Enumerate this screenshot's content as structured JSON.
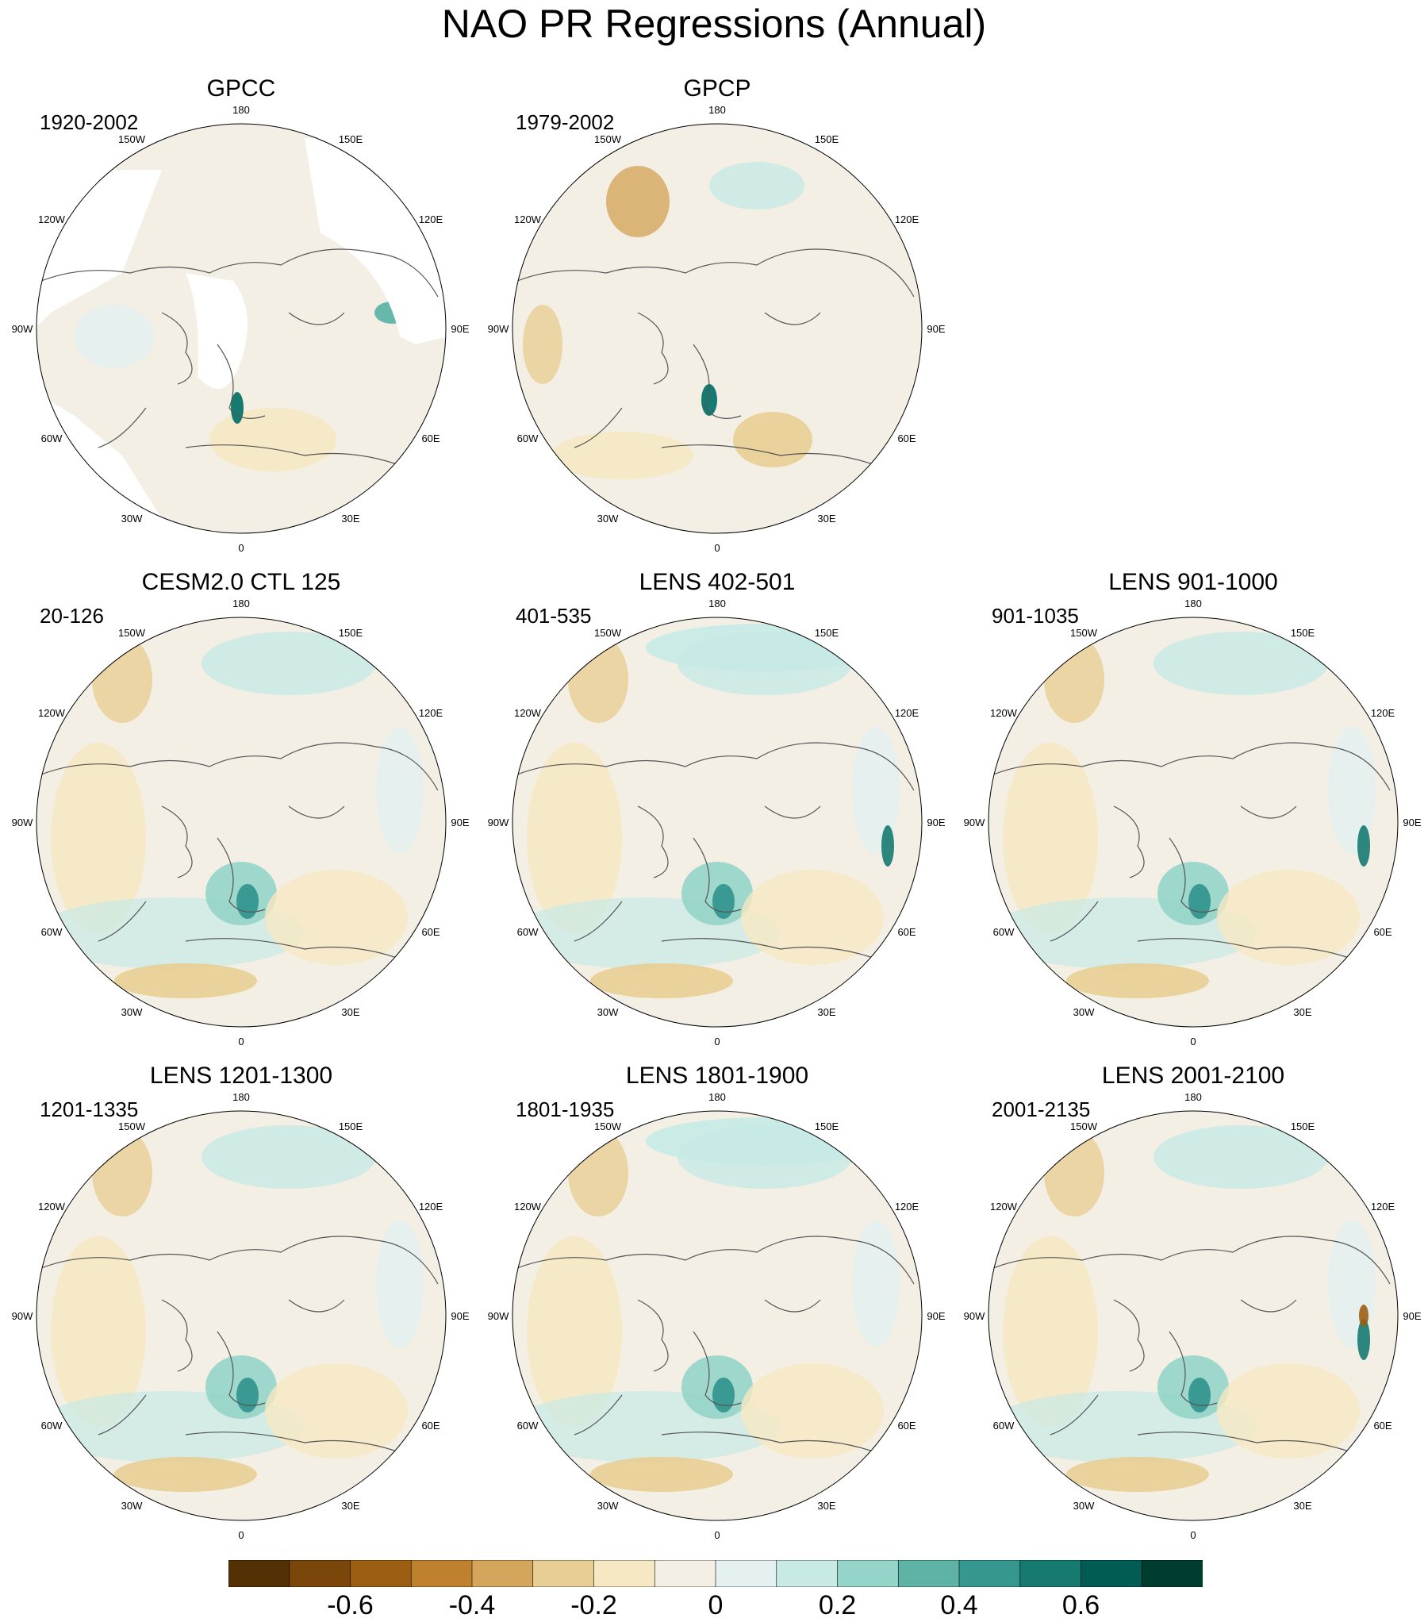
{
  "title": "NAO PR Regressions (Annual)",
  "longitude_labels": [
    "180",
    "150E",
    "120E",
    "90E",
    "60E",
    "30E",
    "0",
    "30W",
    "60W",
    "90W",
    "120W",
    "150W"
  ],
  "panels": [
    {
      "title": "GPCC",
      "period": "1920-2002",
      "dataset": "observed",
      "has_missing_land": true
    },
    {
      "title": "GPCP",
      "period": "1979-2002",
      "dataset": "observed",
      "has_missing_land": false
    },
    {
      "title": "CESM2.0 CTL 125",
      "period": "20-126",
      "dataset": "model",
      "has_missing_land": false
    },
    {
      "title": "LENS 402-501",
      "period": "401-535",
      "dataset": "model",
      "has_missing_land": false
    },
    {
      "title": "LENS 901-1000",
      "period": "901-1035",
      "dataset": "model",
      "has_missing_land": false
    },
    {
      "title": "LENS 1201-1300",
      "period": "1201-1335",
      "dataset": "model",
      "has_missing_land": false
    },
    {
      "title": "LENS 1801-1900",
      "period": "1801-1935",
      "dataset": "model",
      "has_missing_land": false
    },
    {
      "title": "LENS 2001-2100",
      "period": "2001-2135",
      "dataset": "model",
      "has_missing_land": false
    }
  ],
  "colorbar": {
    "colors": [
      "#543005",
      "#7a4609",
      "#9c5e12",
      "#bf812d",
      "#d4a65c",
      "#e8ce94",
      "#f6e8c3",
      "#f3efe4",
      "#e4f1f0",
      "#c7eae5",
      "#95d4c8",
      "#5fb3a6",
      "#35978f",
      "#167a71",
      "#015c53",
      "#003c30"
    ],
    "tick_labels": [
      "-0.6",
      "-0.4",
      "-0.2",
      "0",
      "0.2",
      "0.4",
      "0.6"
    ],
    "tick_values": [
      -0.6,
      -0.4,
      -0.2,
      0,
      0.2,
      0.4,
      0.6
    ],
    "min": -0.8,
    "max": 0.8
  }
}
